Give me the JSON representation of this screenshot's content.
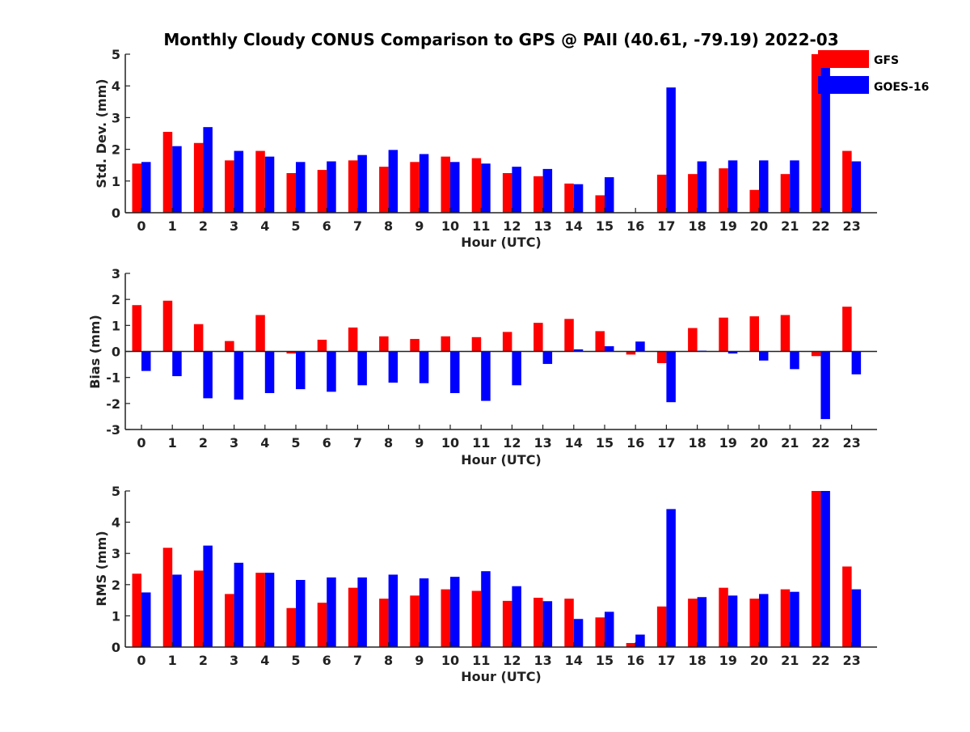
{
  "figure": {
    "title": "Monthly Cloudy CONUS Comparison to GPS @ PAII (40.61, -79.19) 2022-03"
  },
  "legend": {
    "placement": "top-right",
    "entries": [
      {
        "label": "GFS",
        "color": "#ff0000"
      },
      {
        "label": "GOES-16",
        "color": "#0000ff"
      }
    ]
  },
  "chart_data": [
    {
      "type": "bar",
      "ylabel": "Std. Dev. (mm)",
      "xlabel": "Hour (UTC)",
      "ylim": [
        0,
        5
      ],
      "yticks": [
        0,
        1,
        2,
        3,
        4,
        5
      ],
      "categories": [
        "0",
        "1",
        "2",
        "3",
        "4",
        "5",
        "6",
        "7",
        "8",
        "9",
        "10",
        "11",
        "12",
        "13",
        "14",
        "15",
        "16",
        "17",
        "18",
        "19",
        "20",
        "21",
        "22",
        "23"
      ],
      "series": [
        {
          "name": "GFS",
          "color": "#ff0000",
          "values": [
            1.55,
            2.55,
            2.2,
            1.65,
            1.95,
            1.25,
            1.35,
            1.65,
            1.45,
            1.6,
            1.77,
            1.72,
            1.25,
            1.15,
            0.92,
            0.55,
            null,
            1.2,
            1.22,
            1.4,
            0.72,
            1.22,
            5.0,
            1.95
          ]
        },
        {
          "name": "GOES-16",
          "color": "#0000ff",
          "values": [
            1.6,
            2.1,
            2.7,
            1.95,
            1.77,
            1.6,
            1.62,
            1.82,
            1.98,
            1.85,
            1.6,
            1.55,
            1.45,
            1.38,
            0.9,
            1.12,
            null,
            3.95,
            1.62,
            1.65,
            1.65,
            1.65,
            5.0,
            1.62
          ]
        }
      ]
    },
    {
      "type": "bar",
      "ylabel": "Bias (mm)",
      "xlabel": "Hour (UTC)",
      "ylim": [
        -3,
        3
      ],
      "yticks": [
        -3,
        -2,
        -1,
        0,
        1,
        2,
        3
      ],
      "categories": [
        "0",
        "1",
        "2",
        "3",
        "4",
        "5",
        "6",
        "7",
        "8",
        "9",
        "10",
        "11",
        "12",
        "13",
        "14",
        "15",
        "16",
        "17",
        "18",
        "19",
        "20",
        "21",
        "22",
        "23"
      ],
      "series": [
        {
          "name": "GFS",
          "color": "#ff0000",
          "values": [
            1.78,
            1.95,
            1.05,
            0.4,
            1.4,
            -0.08,
            0.45,
            0.92,
            0.58,
            0.48,
            0.58,
            0.55,
            0.75,
            1.1,
            1.25,
            0.78,
            -0.12,
            -0.45,
            0.9,
            1.3,
            1.35,
            1.4,
            -0.18,
            1.72
          ]
        },
        {
          "name": "GOES-16",
          "color": "#0000ff",
          "values": [
            -0.75,
            -0.95,
            -1.8,
            -1.85,
            -1.6,
            -1.45,
            -1.55,
            -1.3,
            -1.2,
            -1.22,
            -1.6,
            -1.9,
            -1.3,
            -0.48,
            0.08,
            0.2,
            0.38,
            -1.95,
            0.03,
            -0.08,
            -0.35,
            -0.68,
            -2.6,
            -0.88
          ]
        }
      ]
    },
    {
      "type": "bar",
      "ylabel": "RMS (mm)",
      "xlabel": "Hour (UTC)",
      "ylim": [
        0,
        5
      ],
      "yticks": [
        0,
        1,
        2,
        3,
        4,
        5
      ],
      "categories": [
        "0",
        "1",
        "2",
        "3",
        "4",
        "5",
        "6",
        "7",
        "8",
        "9",
        "10",
        "11",
        "12",
        "13",
        "14",
        "15",
        "16",
        "17",
        "18",
        "19",
        "20",
        "21",
        "22",
        "23"
      ],
      "series": [
        {
          "name": "GFS",
          "color": "#ff0000",
          "values": [
            2.35,
            3.18,
            2.45,
            1.7,
            2.38,
            1.25,
            1.42,
            1.9,
            1.55,
            1.65,
            1.85,
            1.8,
            1.48,
            1.58,
            1.55,
            0.95,
            0.13,
            1.3,
            1.55,
            1.9,
            1.55,
            1.85,
            5.0,
            2.58
          ]
        },
        {
          "name": "GOES-16",
          "color": "#0000ff",
          "values": [
            1.75,
            2.32,
            3.25,
            2.7,
            2.38,
            2.15,
            2.23,
            2.23,
            2.32,
            2.2,
            2.25,
            2.43,
            1.95,
            1.47,
            0.9,
            1.13,
            0.4,
            4.42,
            1.6,
            1.65,
            1.7,
            1.77,
            5.0,
            1.85
          ]
        }
      ]
    }
  ]
}
